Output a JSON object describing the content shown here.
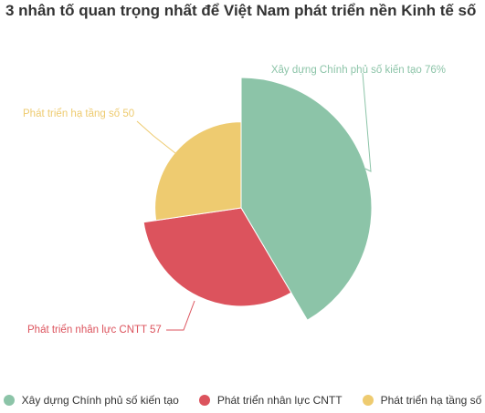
{
  "chart_data": {
    "type": "pie",
    "variant": "variable-radius pie",
    "title": "3 nhân tố quan trọng nhất để Việt Nam phát triển nền Kinh tế số",
    "categories": [
      "Xây dựng Chính phủ số kiến tạo",
      "Phát triển nhân lực CNTT",
      "Phát triển hạ tầng số"
    ],
    "values": [
      76,
      57,
      50
    ],
    "colors": [
      "#8cc4a8",
      "#dc535d",
      "#eecb70"
    ],
    "data_labels": [
      "Xây dựng Chính phủ số kiến tạo 76%",
      "Phát triển nhân lực CNTT 57",
      "Phát triển hạ tầng số 50"
    ],
    "legend_position": "bottom"
  }
}
